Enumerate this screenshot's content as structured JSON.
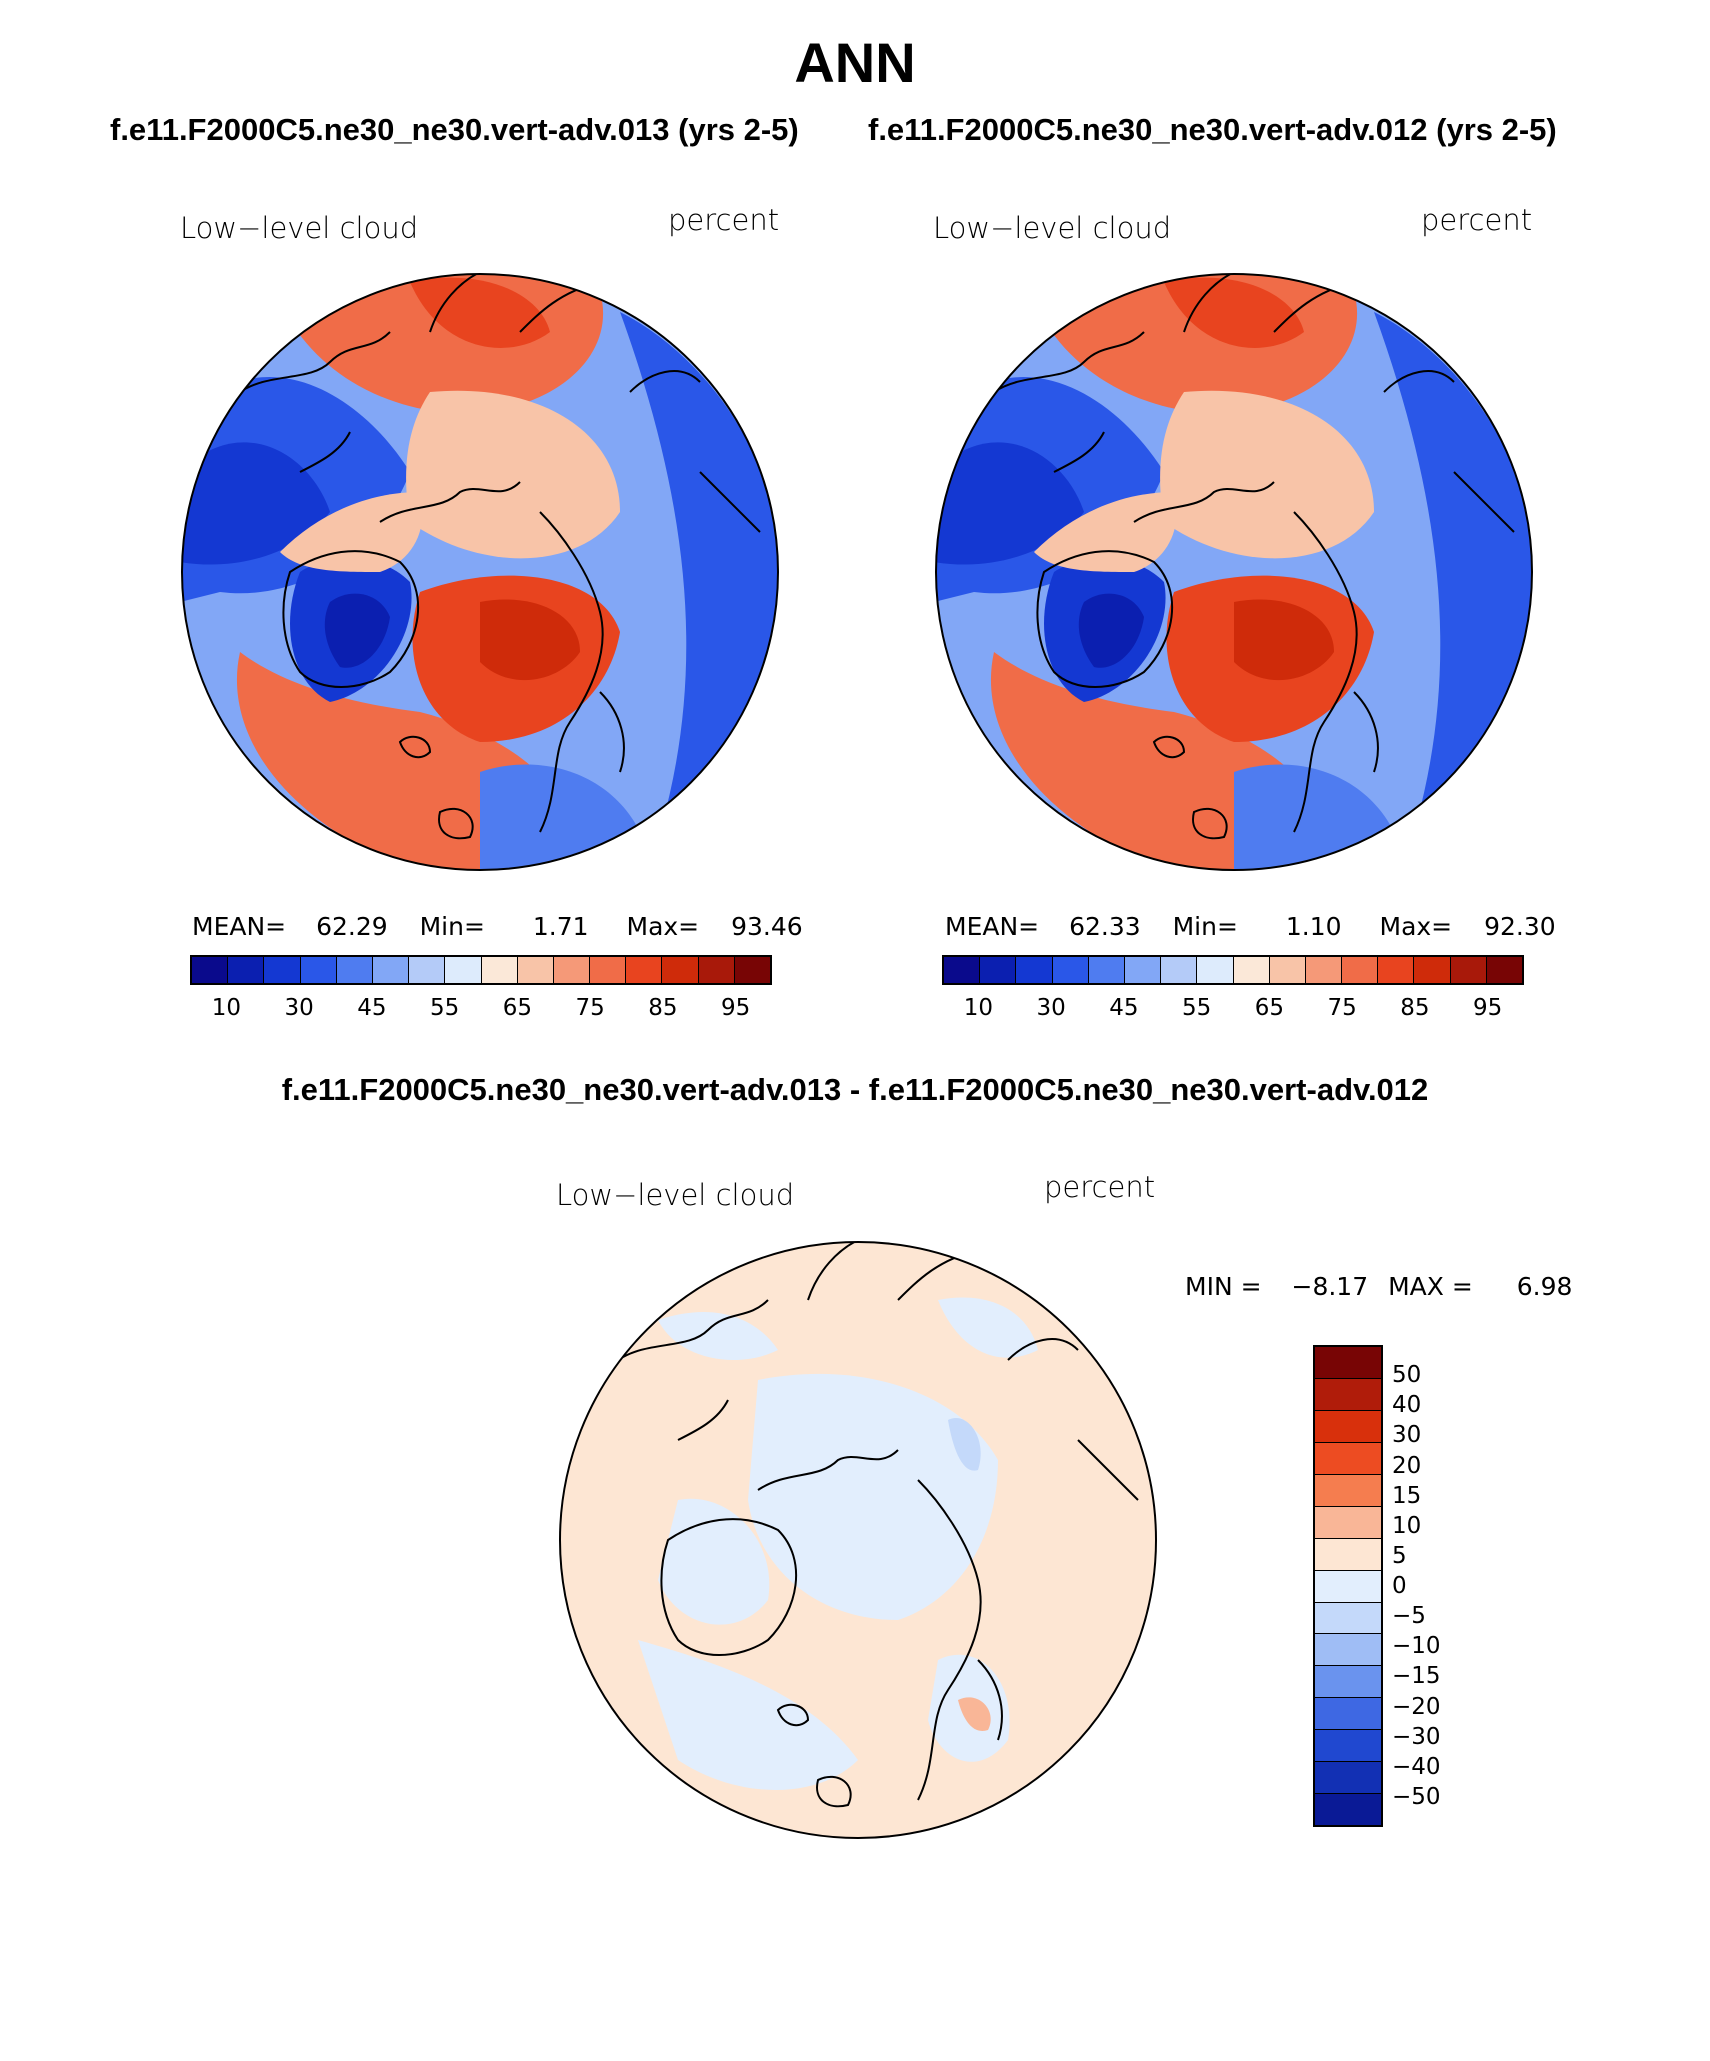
{
  "title": "ANN",
  "panels": [
    {
      "case_title": "f.e11.F2000C5.ne30_ne30.vert-adv.013 (yrs 2-5)",
      "variable": "Low−level cloud",
      "units": "percent",
      "stats": {
        "mean_label": "MEAN=",
        "mean": "62.29",
        "min_label": "Min=",
        "min": "1.71",
        "max_label": "Max=",
        "max": "93.46"
      }
    },
    {
      "case_title": "f.e11.F2000C5.ne30_ne30.vert-adv.012 (yrs 2-5)",
      "variable": "Low−level cloud",
      "units": "percent",
      "stats": {
        "mean_label": "MEAN=",
        "mean": "62.33",
        "min_label": "Min=",
        "min": "1.10",
        "max_label": "Max=",
        "max": "92.30"
      }
    }
  ],
  "colorbar": {
    "colors": [
      "#0a0a8c",
      "#0b1fb0",
      "#1438d2",
      "#2a57e8",
      "#4f7cf0",
      "#82a7f6",
      "#b4cbf8",
      "#ddebfc",
      "#fbe8d8",
      "#f8c4a8",
      "#f59978",
      "#f06c48",
      "#e8441f",
      "#cf2b0a",
      "#a8190a",
      "#780505"
    ],
    "ticks": [
      "10",
      "30",
      "45",
      "55",
      "65",
      "75",
      "85",
      "95"
    ]
  },
  "difference": {
    "title": "f.e11.F2000C5.ne30_ne30.vert-adv.013 - f.e11.F2000C5.ne30_ne30.vert-adv.012",
    "variable": "Low−level cloud",
    "units": "percent",
    "min_label": "MIN =",
    "min": "−8.17",
    "max_label": "MAX =",
    "max": "6.98",
    "colors": [
      "#780505",
      "#b01c0a",
      "#d8300c",
      "#ed4c22",
      "#f57d4f",
      "#f9b697",
      "#fde6d3",
      "#e2eefd",
      "#c4d9fa",
      "#9fbdf5",
      "#6a93ee",
      "#3e68e3",
      "#2048d0",
      "#1230b4",
      "#0a1a96"
    ],
    "labels": [
      "50",
      "40",
      "30",
      "20",
      "15",
      "10",
      "5",
      "0",
      "−5",
      "−10",
      "−15",
      "−20",
      "−30",
      "−40",
      "−50"
    ]
  },
  "chart_data": {
    "type": "heatmap",
    "projection": "polar stereographic, North Pole",
    "field": "Low-level cloud (percent), annual mean",
    "panels": [
      {
        "case": "f.e11.F2000C5.ne30_ne30.vert-adv.013",
        "years": "2-5",
        "mean": 62.29,
        "min": 1.71,
        "max": 93.46
      },
      {
        "case": "f.e11.F2000C5.ne30_ne30.vert-adv.012",
        "years": "2-5",
        "mean": 62.33,
        "min": 1.1,
        "max": 92.3
      },
      {
        "case": "difference 013 - 012",
        "min": -8.17,
        "max": 6.98
      }
    ],
    "contour_levels": [
      10,
      30,
      45,
      55,
      65,
      75,
      85,
      95
    ],
    "difference_levels": [
      -50,
      -40,
      -30,
      -20,
      -15,
      -10,
      -5,
      0,
      5,
      10,
      15,
      20,
      30,
      40,
      50
    ]
  }
}
